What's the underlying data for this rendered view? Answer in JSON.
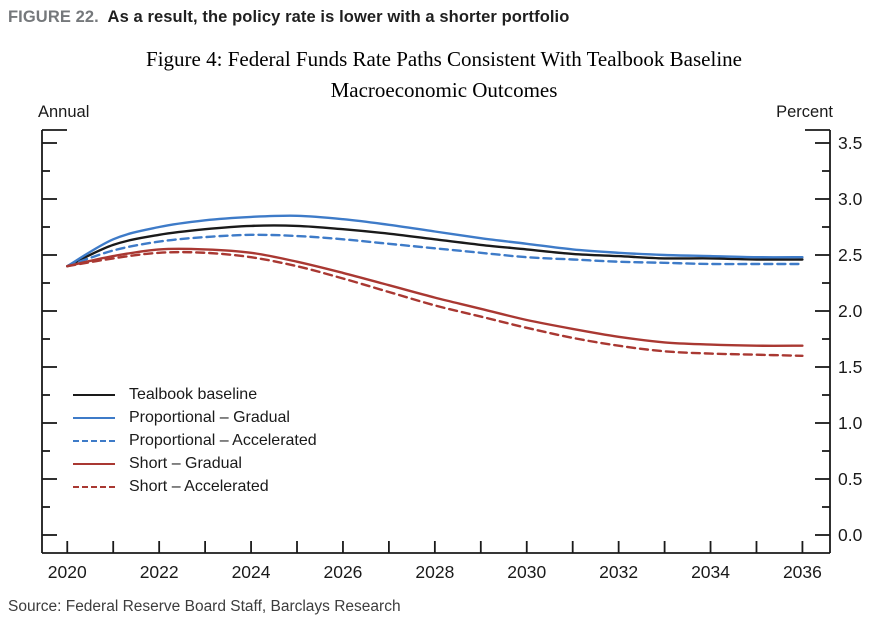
{
  "figure_header": {
    "label": "FIGURE 22.",
    "title": "As a result, the policy rate is lower with a shorter portfolio"
  },
  "source": "Source: Federal Reserve Board Staff, Barclays Research",
  "chart_data": {
    "type": "line",
    "title_line1": "Figure 4: Federal Funds Rate Paths Consistent With Tealbook Baseline",
    "title_line2": "Macroeconomic Outcomes",
    "left_corner_label": "Annual",
    "right_corner_label": "Percent",
    "grid": false,
    "legend_position": "inside-lower-left",
    "x": [
      2020,
      2021,
      2022,
      2023,
      2024,
      2025,
      2026,
      2027,
      2028,
      2029,
      2030,
      2031,
      2032,
      2033,
      2034,
      2035,
      2036
    ],
    "x_tick_years": [
      2020,
      2021,
      2022,
      2023,
      2024,
      2025,
      2026,
      2027,
      2028,
      2029,
      2030,
      2031,
      2032,
      2033,
      2034,
      2035,
      2036
    ],
    "x_labeled_years": [
      2020,
      2022,
      2024,
      2026,
      2028,
      2030,
      2032,
      2034,
      2036
    ],
    "x_tick_labels": [
      "2020",
      "2022",
      "2024",
      "2026",
      "2028",
      "2030",
      "2032",
      "2034",
      "2036"
    ],
    "xlim": [
      2019.45,
      2036.6
    ],
    "ylim": [
      0.0,
      3.5
    ],
    "y_major_ticks": [
      0.0,
      0.5,
      1.0,
      1.5,
      2.0,
      2.5,
      3.0,
      3.5
    ],
    "y_tick_labels": [
      "0.0",
      "0.5",
      "1.0",
      "1.5",
      "2.0",
      "2.5",
      "3.0",
      "3.5"
    ],
    "y_minor_ticks": [
      0.25,
      0.75,
      1.25,
      1.75,
      2.25,
      2.75,
      3.25
    ],
    "axis_color": "#1a1a1a",
    "series": [
      {
        "name": "Tealbook baseline",
        "color": "#1a1a1a",
        "style": "solid",
        "values": [
          2.4,
          2.59,
          2.68,
          2.73,
          2.76,
          2.76,
          2.73,
          2.69,
          2.64,
          2.59,
          2.55,
          2.51,
          2.49,
          2.47,
          2.47,
          2.46,
          2.46
        ]
      },
      {
        "name": "Proportional – Gradual",
        "color": "#3e7bc8",
        "style": "solid",
        "values": [
          2.4,
          2.64,
          2.75,
          2.81,
          2.84,
          2.85,
          2.82,
          2.77,
          2.71,
          2.65,
          2.6,
          2.55,
          2.52,
          2.5,
          2.49,
          2.48,
          2.48
        ]
      },
      {
        "name": "Proportional – Accelerated",
        "color": "#3e7bc8",
        "style": "dashed",
        "values": [
          2.4,
          2.54,
          2.62,
          2.66,
          2.68,
          2.67,
          2.64,
          2.6,
          2.56,
          2.52,
          2.48,
          2.46,
          2.44,
          2.43,
          2.42,
          2.42,
          2.42
        ]
      },
      {
        "name": "Short – Gradual",
        "color": "#a93832",
        "style": "solid",
        "values": [
          2.4,
          2.49,
          2.55,
          2.55,
          2.52,
          2.44,
          2.34,
          2.23,
          2.12,
          2.02,
          1.92,
          1.84,
          1.77,
          1.72,
          1.7,
          1.69,
          1.69
        ]
      },
      {
        "name": "Short – Accelerated",
        "color": "#a93832",
        "style": "dashed",
        "values": [
          2.4,
          2.47,
          2.52,
          2.52,
          2.48,
          2.4,
          2.29,
          2.17,
          2.05,
          1.95,
          1.85,
          1.76,
          1.69,
          1.64,
          1.62,
          1.61,
          1.6
        ]
      }
    ]
  }
}
